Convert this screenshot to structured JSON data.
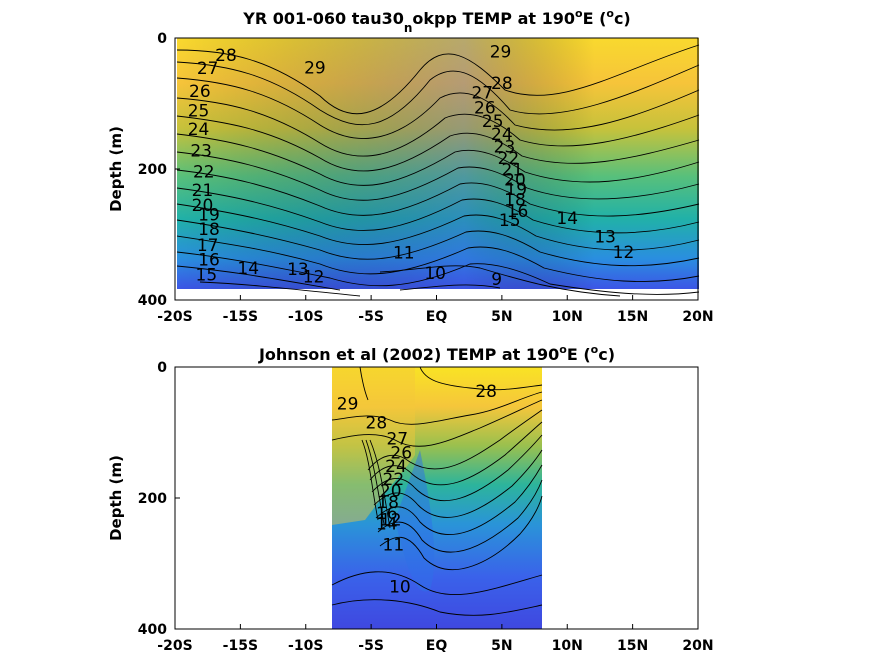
{
  "chart_data": [
    {
      "type": "contour",
      "title": {
        "main": "YR 001-060 tau30",
        "sub": "n",
        "rest": "okpp TEMP at 190",
        "sup1": "o",
        "mid": "E (",
        "sup2": "o",
        "end": "c)"
      },
      "ylabel": "Depth (m)",
      "xticks": [
        "-20S",
        "-15S",
        "-10S",
        "-5S",
        "EQ",
        "5N",
        "10N",
        "15N",
        "20N"
      ],
      "yticks": [
        "0",
        "200",
        "400"
      ],
      "xlim": [
        -20,
        20
      ],
      "ylim": [
        0,
        400
      ],
      "data_extent": {
        "x": [
          -19,
          19
        ],
        "y": [
          0,
          380
        ]
      },
      "colormap": "parula",
      "contour_labels": [
        {
          "text": "28",
          "x": -16.1,
          "y": 35
        },
        {
          "text": "29",
          "x": -9.3,
          "y": 54
        },
        {
          "text": "27",
          "x": -17.5,
          "y": 55
        },
        {
          "text": "26",
          "x": -18.1,
          "y": 90
        },
        {
          "text": "25",
          "x": -18.2,
          "y": 120
        },
        {
          "text": "24",
          "x": -18.2,
          "y": 148
        },
        {
          "text": "23",
          "x": -18.0,
          "y": 181
        },
        {
          "text": "22",
          "x": -17.8,
          "y": 213
        },
        {
          "text": "21",
          "x": -17.9,
          "y": 241
        },
        {
          "text": "20",
          "x": -17.9,
          "y": 264
        },
        {
          "text": "19",
          "x": -17.4,
          "y": 279
        },
        {
          "text": "18",
          "x": -17.4,
          "y": 301
        },
        {
          "text": "17",
          "x": -17.5,
          "y": 325
        },
        {
          "text": "16",
          "x": -17.4,
          "y": 347
        },
        {
          "text": "15",
          "x": -17.6,
          "y": 370
        },
        {
          "text": "14",
          "x": -14.4,
          "y": 360
        },
        {
          "text": "13",
          "x": -10.6,
          "y": 362
        },
        {
          "text": "12",
          "x": -9.4,
          "y": 373
        },
        {
          "text": "11",
          "x": -2.5,
          "y": 337
        },
        {
          "text": "10",
          "x": -0.1,
          "y": 368
        },
        {
          "text": "9",
          "x": 4.6,
          "y": 377
        },
        {
          "text": "29",
          "x": 4.9,
          "y": 30
        },
        {
          "text": "28",
          "x": 5.0,
          "y": 78
        },
        {
          "text": "27",
          "x": 3.5,
          "y": 92
        },
        {
          "text": "26",
          "x": 3.7,
          "y": 115
        },
        {
          "text": "25",
          "x": 4.3,
          "y": 136
        },
        {
          "text": "24",
          "x": 5.0,
          "y": 156
        },
        {
          "text": "23",
          "x": 5.2,
          "y": 175
        },
        {
          "text": "22",
          "x": 5.5,
          "y": 192
        },
        {
          "text": "21",
          "x": 5.8,
          "y": 210
        },
        {
          "text": "20",
          "x": 6.0,
          "y": 225
        },
        {
          "text": "19",
          "x": 6.1,
          "y": 240
        },
        {
          "text": "18",
          "x": 6.0,
          "y": 256
        },
        {
          "text": "16",
          "x": 6.2,
          "y": 273
        },
        {
          "text": "15",
          "x": 5.6,
          "y": 287
        },
        {
          "text": "14",
          "x": 10.0,
          "y": 284
        },
        {
          "text": "13",
          "x": 12.9,
          "y": 312
        },
        {
          "text": "12",
          "x": 14.3,
          "y": 336
        }
      ]
    },
    {
      "type": "contour",
      "title": {
        "main": "Johnson et al (2002) TEMP at 190",
        "sup1": "o",
        "mid": "E (",
        "sup2": "o",
        "end": "c)"
      },
      "ylabel": "Depth (m)",
      "xticks": [
        "-20S",
        "-15S",
        "-10S",
        "-5S",
        "EQ",
        "5N",
        "10N",
        "15N",
        "20N"
      ],
      "yticks": [
        "0",
        "200",
        "400"
      ],
      "xlim": [
        -20,
        20
      ],
      "ylim": [
        0,
        400
      ],
      "data_extent": {
        "x": [
          -8,
          8
        ],
        "y": [
          0,
          400
        ]
      },
      "colormap": "parula",
      "contour_labels": [
        {
          "text": "29",
          "x": -6.8,
          "y": 65
        },
        {
          "text": "28",
          "x": -4.6,
          "y": 94
        },
        {
          "text": "28",
          "x": 3.8,
          "y": 46
        },
        {
          "text": "27",
          "x": -3.0,
          "y": 118
        },
        {
          "text": "26",
          "x": -2.7,
          "y": 140
        },
        {
          "text": "24",
          "x": -3.1,
          "y": 160
        },
        {
          "text": "22",
          "x": -3.3,
          "y": 180
        },
        {
          "text": "20",
          "x": -3.5,
          "y": 198
        },
        {
          "text": "18",
          "x": -3.7,
          "y": 215
        },
        {
          "text": "16",
          "x": -3.8,
          "y": 232
        },
        {
          "text": "14",
          "x": -3.8,
          "y": 248
        },
        {
          "text": "12",
          "x": -3.5,
          "y": 242
        },
        {
          "text": "11",
          "x": -3.3,
          "y": 280
        },
        {
          "text": "10",
          "x": -2.8,
          "y": 344
        }
      ]
    }
  ]
}
